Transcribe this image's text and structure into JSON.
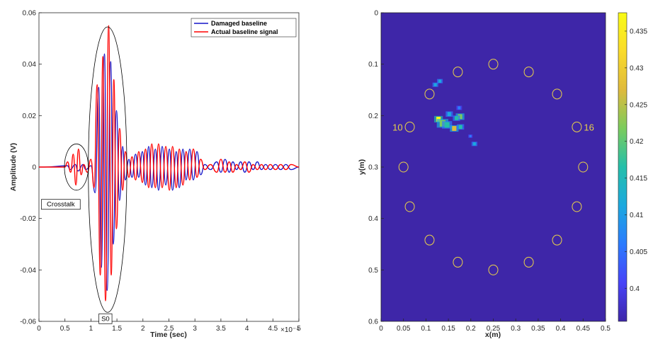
{
  "chart_data": [
    {
      "type": "line",
      "xlabel": "Time (sec)",
      "ylabel": "Amplitude (V)",
      "x_exponent_label": "×10⁻⁴",
      "xlim": [
        0,
        5
      ],
      "ylim": [
        -0.06,
        0.06
      ],
      "x_ticks": [
        "0",
        "0.5",
        "1",
        "1.5",
        "2",
        "2.5",
        "3",
        "3.5",
        "4",
        "4.5",
        "5"
      ],
      "y_ticks": [
        "0.06",
        "0.04",
        "0.02",
        "0",
        "-0.02",
        "-0.04",
        "-0.06"
      ],
      "grid": false,
      "legend_position": "top-right",
      "series": [
        {
          "name": "Damaged baseline",
          "color": "#1414c8",
          "peaks": [
            [
              0.1,
              0
            ],
            [
              0.55,
              0.0005
            ],
            [
              0.6,
              -0.001
            ],
            [
              0.7,
              0.001
            ],
            [
              0.75,
              -0.0015
            ],
            [
              0.85,
              0.001
            ],
            [
              0.9,
              -0.001
            ],
            [
              1.0,
              0.0005
            ],
            [
              1.08,
              -0.01
            ],
            [
              1.15,
              0.031
            ],
            [
              1.2,
              -0.039
            ],
            [
              1.26,
              0.044
            ],
            [
              1.31,
              -0.048
            ],
            [
              1.38,
              0.041
            ],
            [
              1.43,
              -0.03
            ],
            [
              1.49,
              0.022
            ],
            [
              1.55,
              -0.013
            ],
            [
              1.61,
              0.008
            ],
            [
              1.66,
              -0.005
            ],
            [
              1.73,
              0.003
            ],
            [
              1.79,
              -0.004
            ],
            [
              1.86,
              0.005
            ],
            [
              1.92,
              -0.004
            ],
            [
              1.99,
              0.006
            ],
            [
              2.05,
              -0.007
            ],
            [
              2.11,
              0.008
            ],
            [
              2.17,
              -0.008
            ],
            [
              2.24,
              0.007
            ],
            [
              2.3,
              -0.009
            ],
            [
              2.37,
              0.008
            ],
            [
              2.44,
              -0.007
            ],
            [
              2.51,
              0.007
            ],
            [
              2.57,
              -0.009
            ],
            [
              2.64,
              0.006
            ],
            [
              2.7,
              -0.008
            ],
            [
              2.77,
              0.007
            ],
            [
              2.83,
              -0.005
            ],
            [
              2.9,
              0.007
            ],
            [
              2.97,
              -0.005
            ],
            [
              3.04,
              0.006
            ],
            [
              3.11,
              -0.003
            ],
            [
              3.19,
              0.001
            ],
            [
              3.3,
              -0.001
            ],
            [
              3.42,
              0.002
            ],
            [
              3.5,
              -0.002
            ],
            [
              3.58,
              0.003
            ],
            [
              3.66,
              -0.002
            ],
            [
              3.73,
              0.002
            ],
            [
              3.8,
              -0.001
            ],
            [
              3.88,
              0.002
            ],
            [
              3.96,
              -0.002
            ],
            [
              4.04,
              0.002
            ],
            [
              4.12,
              -0.001
            ],
            [
              4.2,
              0.002
            ],
            [
              4.28,
              -0.001
            ],
            [
              4.36,
              0.001
            ],
            [
              4.45,
              -0.001
            ],
            [
              4.55,
              0.001
            ],
            [
              4.65,
              -0.001
            ],
            [
              4.75,
              0.001
            ],
            [
              4.85,
              -0.001
            ],
            [
              5.0,
              0
            ]
          ]
        },
        {
          "name": "Actual baseline signal",
          "color": "#ff0000",
          "peaks": [
            [
              0.1,
              0
            ],
            [
              0.5,
              0
            ],
            [
              0.55,
              0.002
            ],
            [
              0.61,
              -0.002
            ],
            [
              0.66,
              0.005
            ],
            [
              0.71,
              -0.007
            ],
            [
              0.76,
              0.007
            ],
            [
              0.81,
              -0.003
            ],
            [
              0.86,
              0.001
            ],
            [
              0.93,
              -0.002
            ],
            [
              1.0,
              0.003
            ],
            [
              1.06,
              -0.008
            ],
            [
              1.12,
              0.032
            ],
            [
              1.18,
              -0.042
            ],
            [
              1.23,
              0.043
            ],
            [
              1.28,
              -0.052
            ],
            [
              1.34,
              0.055
            ],
            [
              1.39,
              -0.042
            ],
            [
              1.44,
              0.034
            ],
            [
              1.49,
              -0.024
            ],
            [
              1.55,
              0.015
            ],
            [
              1.61,
              -0.009
            ],
            [
              1.66,
              0.006
            ],
            [
              1.73,
              -0.004
            ],
            [
              1.79,
              0.004
            ],
            [
              1.86,
              -0.005
            ],
            [
              1.92,
              0.006
            ],
            [
              1.99,
              -0.006
            ],
            [
              2.05,
              0.007
            ],
            [
              2.11,
              -0.008
            ],
            [
              2.17,
              0.009
            ],
            [
              2.24,
              -0.008
            ],
            [
              2.3,
              0.009
            ],
            [
              2.37,
              -0.008
            ],
            [
              2.44,
              0.008
            ],
            [
              2.51,
              -0.009
            ],
            [
              2.57,
              0.008
            ],
            [
              2.64,
              -0.008
            ],
            [
              2.7,
              0.007
            ],
            [
              2.77,
              -0.007
            ],
            [
              2.83,
              0.006
            ],
            [
              2.9,
              -0.005
            ],
            [
              2.97,
              0.007
            ],
            [
              3.04,
              -0.004
            ],
            [
              3.11,
              0.003
            ],
            [
              3.19,
              -0.001
            ],
            [
              3.3,
              0.001
            ],
            [
              3.42,
              -0.002
            ],
            [
              3.5,
              0.003
            ],
            [
              3.58,
              -0.002
            ],
            [
              3.66,
              0.002
            ],
            [
              3.73,
              -0.002
            ],
            [
              3.8,
              0.001
            ],
            [
              3.88,
              -0.001
            ],
            [
              3.96,
              0.002
            ],
            [
              4.04,
              -0.002
            ],
            [
              4.12,
              0.001
            ],
            [
              4.2,
              -0.001
            ],
            [
              4.28,
              0.001
            ],
            [
              4.36,
              -0.001
            ],
            [
              4.45,
              0.001
            ],
            [
              4.55,
              -0.001
            ],
            [
              4.65,
              0.001
            ],
            [
              4.75,
              -0.001
            ],
            [
              4.85,
              0.001
            ],
            [
              5.0,
              0
            ]
          ]
        }
      ],
      "annotations": [
        {
          "label": "Crosstalk",
          "ellipse_center": [
            0.72,
            0.0
          ],
          "ellipse_radii": [
            0.23,
            0.009
          ]
        },
        {
          "label": "S0",
          "ellipse_center": [
            1.32,
            -0.001
          ],
          "ellipse_radii": [
            0.37,
            0.0555
          ]
        }
      ]
    },
    {
      "type": "heatmap",
      "xlabel": "x(m)",
      "ylabel": "y(m)",
      "xlim": [
        0,
        0.5
      ],
      "ylim": [
        0,
        0.6
      ],
      "y_reversed": true,
      "x_ticks": [
        "0",
        "0.05",
        "0.1",
        "0.15",
        "0.2",
        "0.25",
        "0.3",
        "0.35",
        "0.4",
        "0.45",
        "0.5"
      ],
      "y_ticks": [
        "0",
        "0.1",
        "0.2",
        "0.3",
        "0.4",
        "0.5",
        "0.6"
      ],
      "colorbar_ticks": [
        "0.435",
        "0.43",
        "0.425",
        "0.42",
        "0.415",
        "0.41",
        "0.405",
        "0.4"
      ],
      "colorbar_range": [
        0.3955,
        0.4375
      ],
      "colormap": [
        "#3e26a8",
        "#4743f8",
        "#2c7bfe",
        "#1ca9df",
        "#24bfaa",
        "#7bcc5d",
        "#dfba3c",
        "#fadb2a",
        "#f9fb15"
      ],
      "background_value": 0.396,
      "hotspots": [
        {
          "x": 0.128,
          "y": 0.207,
          "value": 0.436,
          "size": 0.006
        },
        {
          "x": 0.137,
          "y": 0.215,
          "value": 0.422,
          "size": 0.008
        },
        {
          "x": 0.147,
          "y": 0.218,
          "value": 0.418,
          "size": 0.007
        },
        {
          "x": 0.163,
          "y": 0.225,
          "value": 0.425,
          "size": 0.006
        },
        {
          "x": 0.176,
          "y": 0.202,
          "value": 0.422,
          "size": 0.006
        },
        {
          "x": 0.177,
          "y": 0.222,
          "value": 0.418,
          "size": 0.005
        },
        {
          "x": 0.168,
          "y": 0.205,
          "value": 0.416,
          "size": 0.005
        },
        {
          "x": 0.152,
          "y": 0.197,
          "value": 0.413,
          "size": 0.005
        },
        {
          "x": 0.121,
          "y": 0.14,
          "value": 0.41,
          "size": 0.004
        },
        {
          "x": 0.131,
          "y": 0.133,
          "value": 0.412,
          "size": 0.004
        },
        {
          "x": 0.174,
          "y": 0.185,
          "value": 0.408,
          "size": 0.004
        },
        {
          "x": 0.208,
          "y": 0.255,
          "value": 0.41,
          "size": 0.004
        },
        {
          "x": 0.199,
          "y": 0.24,
          "value": 0.404,
          "size": 0.003
        }
      ],
      "sensors": [
        {
          "x": 0.25,
          "y": 0.1
        },
        {
          "x": 0.329,
          "y": 0.115
        },
        {
          "x": 0.392,
          "y": 0.158
        },
        {
          "x": 0.436,
          "y": 0.222,
          "label": "16"
        },
        {
          "x": 0.45,
          "y": 0.3
        },
        {
          "x": 0.436,
          "y": 0.377
        },
        {
          "x": 0.392,
          "y": 0.442
        },
        {
          "x": 0.329,
          "y": 0.485
        },
        {
          "x": 0.25,
          "y": 0.5
        },
        {
          "x": 0.171,
          "y": 0.485
        },
        {
          "x": 0.108,
          "y": 0.442
        },
        {
          "x": 0.064,
          "y": 0.377
        },
        {
          "x": 0.05,
          "y": 0.3
        },
        {
          "x": 0.064,
          "y": 0.222,
          "label": "10"
        },
        {
          "x": 0.108,
          "y": 0.158
        },
        {
          "x": 0.171,
          "y": 0.115
        }
      ],
      "sensor_color": "#e8d04a"
    }
  ]
}
